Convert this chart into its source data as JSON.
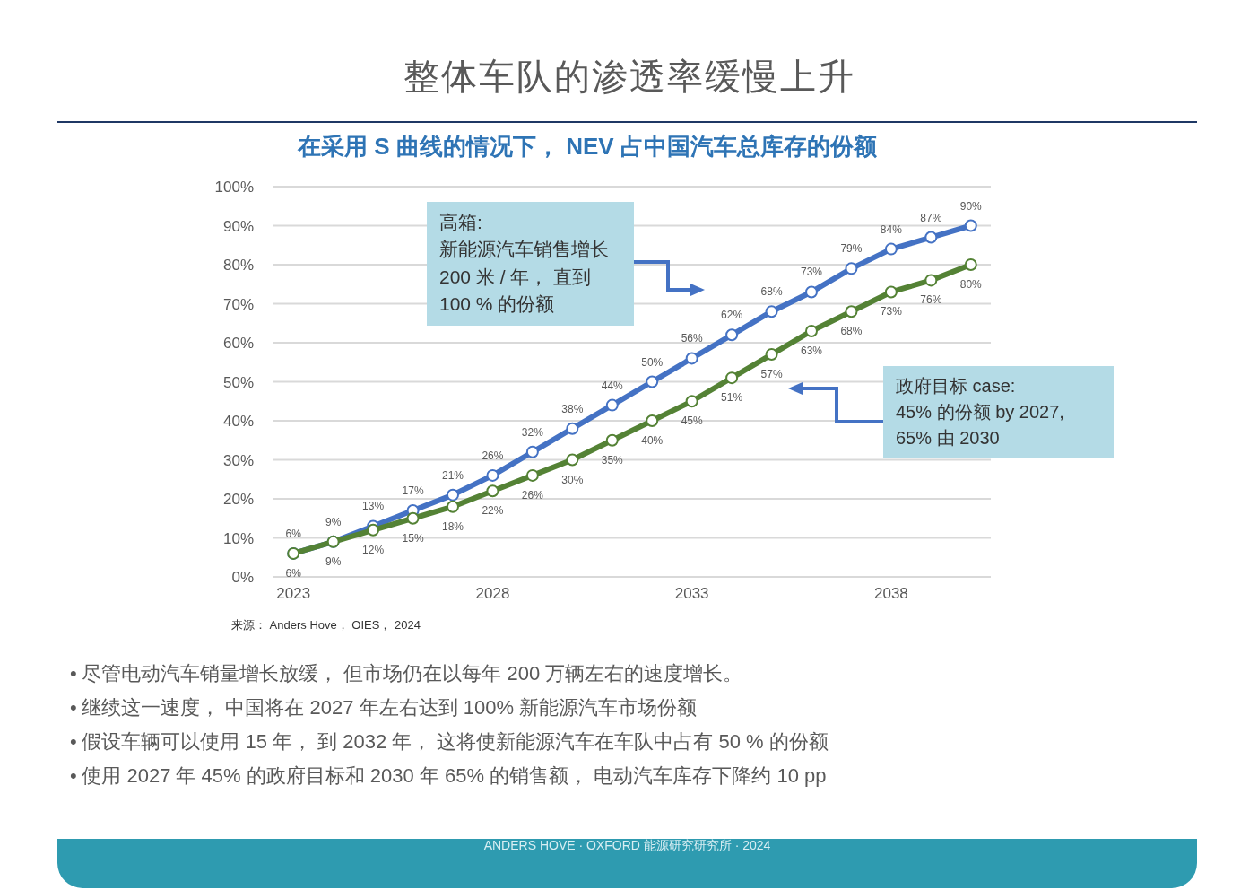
{
  "chart_data": {
    "type": "line",
    "title": "整体车队的渗透率缓慢上升",
    "subtitle": "在采用 S 曲线的情况下， NEV 占中国汽车总库存的份额",
    "x": [
      2023,
      2024,
      2025,
      2026,
      2027,
      2028,
      2029,
      2030,
      2031,
      2032,
      2033,
      2034,
      2035,
      2036,
      2037,
      2038,
      2039,
      2040
    ],
    "series": [
      {
        "color": "#4472c4",
        "values": [
          6,
          9,
          13,
          17,
          21,
          26,
          32,
          38,
          44,
          50,
          56,
          62,
          68,
          73,
          79,
          84,
          87,
          90
        ],
        "value_labels": [
          "6%",
          "9%",
          "13%",
          "17%",
          "21%",
          "26%",
          "32%",
          "38%",
          "44%",
          "50%",
          "56%",
          "62%",
          "68%",
          "73%",
          "79%",
          "84%",
          "87%",
          "90%"
        ]
      },
      {
        "color": "#548235",
        "values": [
          6,
          9,
          12,
          15,
          18,
          22,
          26,
          30,
          35,
          40,
          45,
          51,
          57,
          63,
          68,
          73,
          76,
          80
        ],
        "value_labels": [
          "6%",
          "9%",
          "12%",
          "15%",
          "18%",
          "22%",
          "26%",
          "30%",
          "35%",
          "40%",
          "45%",
          "51%",
          "57%",
          "63%",
          "68%",
          "73%",
          "76%",
          "80%"
        ]
      }
    ],
    "xlim": [
      2022.5,
      2040.5
    ],
    "xticks": [
      2023,
      2028,
      2033,
      2038
    ],
    "ylim": [
      0,
      100
    ],
    "yticks": [
      {
        "value": 0,
        "label": "0%"
      },
      {
        "value": 10,
        "label": "10%"
      },
      {
        "value": 20,
        "label": "20%"
      },
      {
        "value": 30,
        "label": "30%"
      },
      {
        "value": 40,
        "label": "40%"
      },
      {
        "value": 50,
        "label": "50%"
      },
      {
        "value": 60,
        "label": "60%"
      },
      {
        "value": 70,
        "label": "70%"
      },
      {
        "value": 80,
        "label": "80%"
      },
      {
        "value": 90,
        "label": "90%"
      },
      {
        "value": 100,
        "label": "100%"
      }
    ],
    "grid": "y",
    "marker": "circle",
    "line_style": "solid",
    "annotations": [
      "高箱:\n新能源汽车销售增长\n200 米 / 年， 直到\n100 % 的份额",
      "政府目标 case:\n45% 的份额 by 2027,\n65% 由 2030",
      "来源： Anders Hove， OIES， 2024",
      "•\t尽管电动汽车销量增长放缓， 但市场仍在以每年 200 万辆左右的速度增长。",
      "•\t继续这一速度， 中国将在 2027 年左右达到 100% 新能源汽车市场份额",
      "•\t假设车辆可以使用 15 年， 到 2032 年， 这将使新能源汽车在车队中占有 50 % 的份额",
      "•\t使用 2027 年 45% 的政府目标和 2030 年 65% 的销售额， 电动汽车库存下降约 10 pp",
      "ANDERS HOVE · OXFORD 能源研究研究所 · 2024"
    ]
  }
}
